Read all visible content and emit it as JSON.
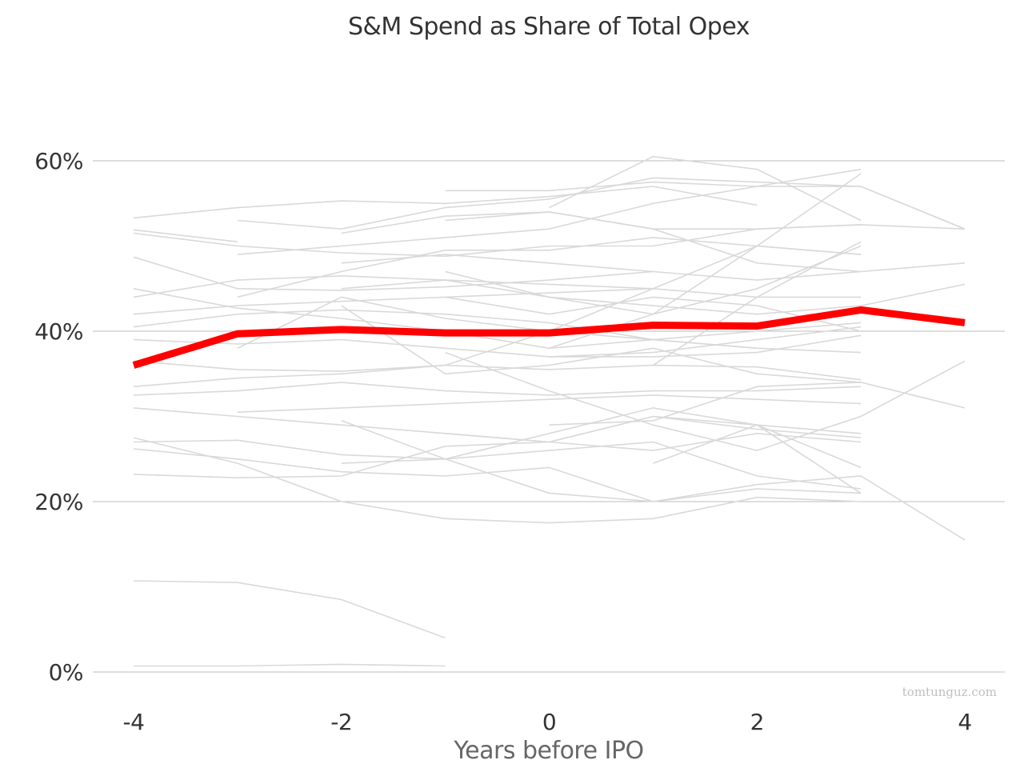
{
  "chart_data": {
    "type": "line",
    "title": "S&M Spend as Share of Total Opex",
    "xlabel": "Years before IPO",
    "ylabel": "",
    "watermark": "tomtunguz.com",
    "xlim": [
      -4.6,
      4.5
    ],
    "ylim": [
      0,
      0.66
    ],
    "x_ticks": [
      -4,
      -2,
      0,
      2,
      4
    ],
    "x_tick_labels": [
      "-4",
      "-2",
      "0",
      "2",
      "4"
    ],
    "y_ticks": [
      0,
      0.2,
      0.4,
      0.6
    ],
    "y_tick_labels": [
      "0%",
      "20%",
      "40%",
      "60%"
    ],
    "grid": "horizontal",
    "colors": {
      "highlight": "#ff0000",
      "peers": "#d9d9d9",
      "grid": "#bdbdbd"
    },
    "highlight_series": {
      "name": "",
      "x": [
        -4,
        -3,
        -2,
        -1,
        0,
        1,
        2,
        3,
        4
      ],
      "values": [
        0.36,
        0.397,
        0.402,
        0.398,
        0.398,
        0.407,
        0.406,
        0.425,
        0.41
      ]
    },
    "series": [
      {
        "x": [
          -4,
          -3,
          -2,
          -1,
          0,
          1,
          2
        ],
        "values": [
          0.533,
          0.545,
          0.553,
          0.55,
          0.558,
          0.57,
          0.548
        ]
      },
      {
        "x": [
          -4,
          -3
        ],
        "values": [
          0.519,
          0.505
        ]
      },
      {
        "x": [
          -4,
          -3,
          -2,
          -1,
          0,
          1,
          2,
          3
        ],
        "values": [
          0.515,
          0.5,
          0.492,
          0.488,
          0.5,
          0.5,
          0.52,
          0.525
        ]
      },
      {
        "x": [
          -4,
          -3,
          -2,
          -1,
          0,
          1
        ],
        "values": [
          0.487,
          0.45,
          0.448,
          0.452,
          0.46,
          0.47
        ]
      },
      {
        "x": [
          -4,
          -3,
          -2,
          -1,
          0,
          1,
          2,
          3
        ],
        "values": [
          0.45,
          0.427,
          0.415,
          0.4,
          0.38,
          0.39,
          0.4,
          0.41
        ]
      },
      {
        "x": [
          -4,
          -3,
          -2,
          -1,
          0,
          1
        ],
        "values": [
          0.44,
          0.46,
          0.465,
          0.46,
          0.455,
          0.45
        ]
      },
      {
        "x": [
          -4,
          -3,
          -2,
          -1,
          0,
          1,
          2,
          3
        ],
        "values": [
          0.42,
          0.43,
          0.435,
          0.44,
          0.445,
          0.45,
          0.44,
          0.44
        ]
      },
      {
        "x": [
          -4,
          -3,
          -2,
          -1,
          0,
          1,
          2
        ],
        "values": [
          0.405,
          0.42,
          0.425,
          0.42,
          0.41,
          0.39,
          0.38
        ]
      },
      {
        "x": [
          -4,
          -3,
          -2,
          -1,
          0,
          1,
          2,
          3
        ],
        "values": [
          0.39,
          0.385,
          0.39,
          0.38,
          0.37,
          0.375,
          0.39,
          0.405
        ]
      },
      {
        "x": [
          -4,
          -3,
          -2,
          -1,
          0,
          1,
          2,
          3
        ],
        "values": [
          0.365,
          0.355,
          0.353,
          0.36,
          0.355,
          0.36,
          0.358,
          0.343
        ]
      },
      {
        "x": [
          -4,
          -3,
          -2,
          -1,
          0,
          1,
          2,
          3
        ],
        "values": [
          0.335,
          0.345,
          0.35,
          0.36,
          0.4,
          0.45,
          0.5,
          0.585
        ]
      },
      {
        "x": [
          -4,
          -3,
          -2,
          -1,
          0,
          1,
          2,
          3
        ],
        "values": [
          0.325,
          0.33,
          0.34,
          0.33,
          0.325,
          0.33,
          0.33,
          0.335
        ]
      },
      {
        "x": [
          -4,
          -3,
          -2,
          -1,
          0,
          1,
          2,
          3
        ],
        "values": [
          0.31,
          0.3,
          0.29,
          0.28,
          0.27,
          0.26,
          0.28,
          0.27
        ]
      },
      {
        "x": [
          -4,
          -3,
          -2,
          -1,
          0,
          1,
          2,
          3
        ],
        "values": [
          0.275,
          0.245,
          0.2,
          0.18,
          0.175,
          0.18,
          0.205,
          0.2
        ]
      },
      {
        "x": [
          -4,
          -3,
          -2,
          -1,
          0,
          1,
          2,
          3
        ],
        "values": [
          0.27,
          0.272,
          0.255,
          0.25,
          0.26,
          0.27,
          0.23,
          0.215
        ]
      },
      {
        "x": [
          -4,
          -3,
          -2,
          -1,
          0,
          1,
          2,
          3
        ],
        "values": [
          0.262,
          0.25,
          0.235,
          0.23,
          0.24,
          0.2,
          0.215,
          0.21
        ]
      },
      {
        "x": [
          -4,
          -3,
          -2,
          -1,
          0,
          1,
          2,
          3
        ],
        "values": [
          0.232,
          0.228,
          0.23,
          0.265,
          0.27,
          0.3,
          0.285,
          0.275
        ]
      },
      {
        "x": [
          -4,
          -3,
          -2,
          -1
        ],
        "values": [
          0.107,
          0.105,
          0.085,
          0.04
        ]
      },
      {
        "x": [
          -4,
          -3,
          -2,
          -1
        ],
        "values": [
          0.007,
          0.007,
          0.009,
          0.007
        ]
      },
      {
        "x": [
          -3,
          -2,
          -1,
          0,
          1,
          2,
          3,
          4
        ],
        "values": [
          0.53,
          0.52,
          0.545,
          0.555,
          0.58,
          0.575,
          0.57,
          0.52
        ]
      },
      {
        "x": [
          -3,
          -2,
          -1,
          0,
          1,
          2,
          3
        ],
        "values": [
          0.49,
          0.5,
          0.51,
          0.52,
          0.55,
          0.57,
          0.59
        ]
      },
      {
        "x": [
          -3,
          -2,
          -1,
          0,
          1,
          2,
          3
        ],
        "values": [
          0.44,
          0.47,
          0.495,
          0.495,
          0.51,
          0.5,
          0.49
        ]
      },
      {
        "x": [
          -3,
          -2,
          -1,
          0,
          1,
          2,
          3
        ],
        "values": [
          0.38,
          0.44,
          0.415,
          0.4,
          0.39,
          0.38,
          0.375
        ]
      },
      {
        "x": [
          -3,
          -2,
          -1,
          0,
          1,
          2,
          3
        ],
        "values": [
          0.305,
          0.31,
          0.315,
          0.32,
          0.325,
          0.32,
          0.315
        ]
      },
      {
        "x": [
          -2,
          -1,
          0,
          1,
          2,
          3,
          4
        ],
        "values": [
          0.515,
          0.535,
          0.54,
          0.52,
          0.52,
          0.525,
          0.52
        ]
      },
      {
        "x": [
          -2,
          -1,
          0,
          1,
          2,
          3,
          4
        ],
        "values": [
          0.48,
          0.49,
          0.48,
          0.47,
          0.46,
          0.47,
          0.48
        ]
      },
      {
        "x": [
          -2,
          -1,
          0,
          1,
          2,
          3,
          4
        ],
        "values": [
          0.45,
          0.46,
          0.44,
          0.43,
          0.42,
          0.43,
          0.455
        ]
      },
      {
        "x": [
          -2,
          -1,
          0,
          1,
          2,
          3,
          4
        ],
        "values": [
          0.43,
          0.35,
          0.36,
          0.38,
          0.35,
          0.34,
          0.31
        ]
      },
      {
        "x": [
          -2,
          -1,
          0,
          1,
          2,
          3,
          4
        ],
        "values": [
          0.295,
          0.25,
          0.21,
          0.2,
          0.22,
          0.23,
          0.155
        ]
      },
      {
        "x": [
          -2,
          -1,
          0,
          1,
          2,
          3
        ],
        "values": [
          0.245,
          0.25,
          0.28,
          0.31,
          0.29,
          0.24
        ]
      },
      {
        "x": [
          -1,
          0,
          1,
          2,
          3,
          4
        ],
        "values": [
          0.565,
          0.565,
          0.575,
          0.57,
          0.57,
          0.52
        ]
      },
      {
        "x": [
          -1,
          0,
          1,
          2,
          3
        ],
        "values": [
          0.53,
          0.54,
          0.52,
          0.48,
          0.47
        ]
      },
      {
        "x": [
          -1,
          0,
          1,
          2,
          3
        ],
        "values": [
          0.47,
          0.44,
          0.42,
          0.45,
          0.5
        ]
      },
      {
        "x": [
          -1,
          0,
          1,
          2,
          3
        ],
        "values": [
          0.44,
          0.42,
          0.44,
          0.43,
          0.4
        ]
      },
      {
        "x": [
          -1,
          0,
          1,
          2,
          3,
          4
        ],
        "values": [
          0.375,
          0.33,
          0.29,
          0.26,
          0.3,
          0.365
        ]
      },
      {
        "x": [
          -1,
          0,
          1,
          2,
          3
        ],
        "values": [
          0.28,
          0.27,
          0.3,
          0.29,
          0.28
        ]
      },
      {
        "x": [
          0,
          1,
          2,
          3
        ],
        "values": [
          0.545,
          0.605,
          0.59,
          0.53
        ]
      },
      {
        "x": [
          0,
          1,
          2,
          3
        ],
        "values": [
          0.38,
          0.42,
          0.5,
          0.49
        ]
      },
      {
        "x": [
          0,
          1,
          2,
          3
        ],
        "values": [
          0.37,
          0.37,
          0.375,
          0.395
        ]
      },
      {
        "x": [
          0,
          1,
          2,
          3
        ],
        "values": [
          0.29,
          0.295,
          0.335,
          0.34
        ]
      },
      {
        "x": [
          1,
          2,
          3
        ],
        "values": [
          0.245,
          0.29,
          0.21
        ]
      },
      {
        "x": [
          1,
          2,
          3
        ],
        "values": [
          0.36,
          0.44,
          0.505
        ]
      }
    ]
  }
}
